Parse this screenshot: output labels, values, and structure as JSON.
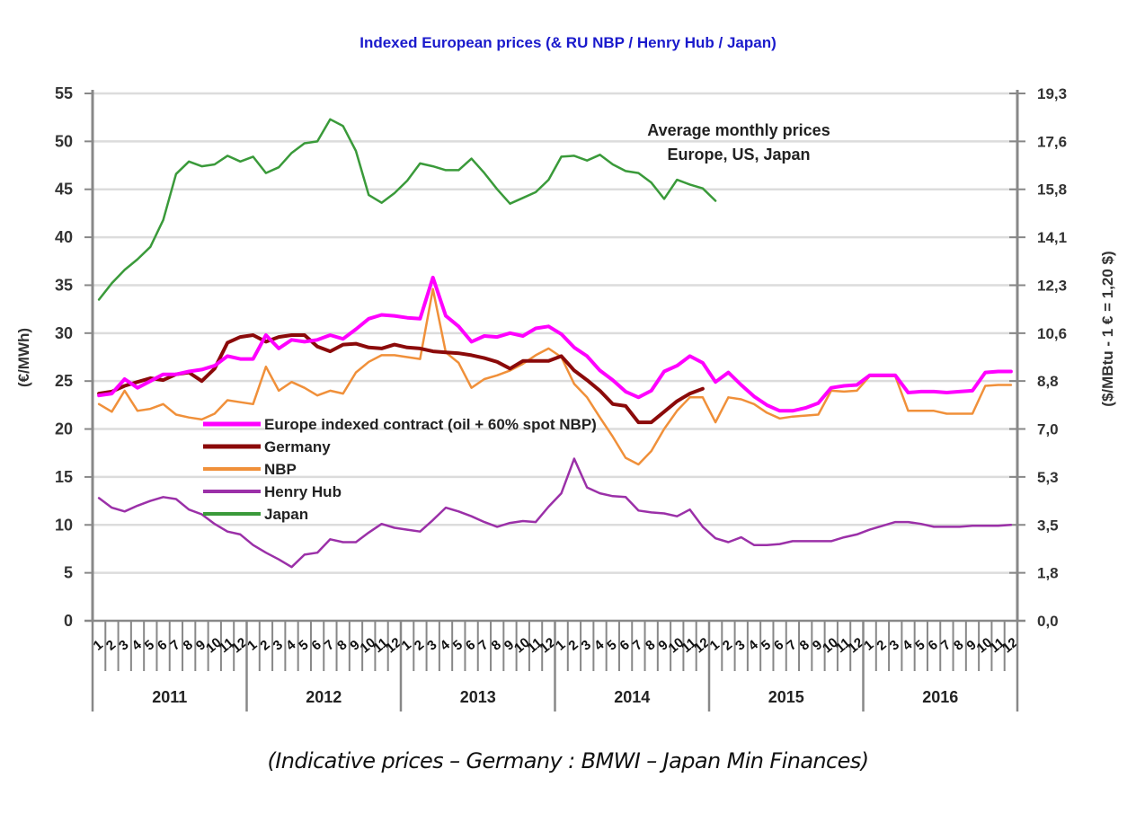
{
  "chart_data": {
    "type": "line",
    "title": "Indexed European prices (& RU NBP  / Henry Hub / Japan)",
    "caption": "(Indicative prices –  Germany : BMWI – Japan Min Finances)",
    "annotation": [
      "Average monthly prices",
      "Europe, US, Japan"
    ],
    "ylabel": "(€/MWh)",
    "ylabel_right": "($/MBtu - 1 € = 1,20 $)",
    "ylim": [
      0,
      55
    ],
    "yticks": [
      "0",
      "5",
      "10",
      "15",
      "20",
      "25",
      "30",
      "35",
      "40",
      "45",
      "50",
      "55"
    ],
    "yticks_right": [
      "0,0",
      "1,8",
      "3,5",
      "5,3",
      "7,0",
      "8,8",
      "10,6",
      "12,3",
      "14,1",
      "15,8",
      "17,6",
      "19,3"
    ],
    "grid": true,
    "legend_position": "lower-left-center",
    "years": [
      "2011",
      "2012",
      "2013",
      "2014",
      "2015",
      "2016"
    ],
    "month_labels": [
      "1",
      "2",
      "3",
      "4",
      "5",
      "6",
      "7",
      "8",
      "9",
      "10",
      "11",
      "12"
    ],
    "series": [
      {
        "name": "Europe indexed contract (oil + 60% spot NBP)",
        "color": "#ff00ff",
        "values": [
          23.5,
          23.7,
          25.2,
          24.3,
          25.0,
          25.7,
          25.7,
          26.0,
          26.2,
          26.6,
          27.6,
          27.3,
          27.3,
          29.8,
          28.4,
          29.3,
          29.1,
          29.3,
          29.8,
          29.4,
          30.4,
          31.5,
          31.9,
          31.8,
          31.6,
          31.5,
          35.8,
          31.8,
          30.7,
          29.1,
          29.7,
          29.6,
          30.0,
          29.7,
          30.5,
          30.7,
          29.9,
          28.5,
          27.6,
          26.1,
          25.1,
          23.9,
          23.3,
          24.0,
          26.0,
          26.6,
          27.6,
          26.9,
          24.9,
          25.9,
          24.6,
          23.4,
          22.5,
          21.9,
          21.9,
          22.2,
          22.7,
          24.3,
          24.5,
          24.6,
          25.6,
          25.6,
          25.6,
          23.8,
          23.9,
          23.9,
          23.8,
          23.9,
          24.0,
          25.9,
          26.0,
          26.0
        ]
      },
      {
        "name": "Germany",
        "color": "#8b0a0a",
        "values": [
          23.7,
          23.9,
          24.5,
          24.9,
          25.3,
          25.1,
          25.7,
          25.9,
          25.0,
          26.3,
          29.0,
          29.6,
          29.8,
          29.1,
          29.6,
          29.8,
          29.8,
          28.6,
          28.1,
          28.8,
          28.9,
          28.5,
          28.4,
          28.8,
          28.5,
          28.4,
          28.1,
          28.0,
          27.9,
          27.7,
          27.4,
          27.0,
          26.3,
          27.1,
          27.1,
          27.1,
          27.6,
          26.1,
          25.1,
          24.0,
          22.6,
          22.4,
          20.7,
          20.7,
          21.8,
          22.9,
          23.7,
          24.2,
          null,
          null,
          null,
          null,
          null,
          null,
          null,
          null,
          null,
          null,
          null,
          null,
          null,
          null,
          null,
          null,
          null,
          null,
          null,
          null,
          null,
          null,
          null,
          null
        ]
      },
      {
        "name": "NBP",
        "color": "#f0903a",
        "values": [
          22.6,
          21.8,
          24.0,
          21.9,
          22.1,
          22.6,
          21.5,
          21.2,
          21.0,
          21.6,
          23.0,
          22.8,
          22.6,
          26.5,
          24.0,
          24.9,
          24.3,
          23.5,
          24.0,
          23.7,
          25.9,
          27.0,
          27.7,
          27.7,
          27.5,
          27.3,
          34.6,
          28.0,
          26.9,
          24.3,
          25.2,
          25.6,
          26.1,
          26.8,
          27.7,
          28.4,
          27.5,
          24.7,
          23.3,
          21.2,
          19.2,
          17.0,
          16.3,
          17.7,
          20.0,
          21.9,
          23.3,
          23.3,
          20.7,
          23.3,
          23.1,
          22.6,
          21.7,
          21.1,
          21.3,
          21.4,
          21.5,
          24.0,
          23.9,
          24.0,
          25.5,
          25.5,
          25.5,
          21.9,
          21.9,
          21.9,
          21.6,
          21.6,
          21.6,
          24.5,
          24.6,
          24.6
        ]
      },
      {
        "name": "Henry Hub",
        "color": "#9b30a8",
        "values": [
          12.8,
          11.8,
          11.4,
          12.0,
          12.5,
          12.9,
          12.7,
          11.6,
          11.1,
          10.1,
          9.3,
          9.0,
          7.9,
          7.1,
          6.4,
          5.6,
          6.9,
          7.1,
          8.5,
          8.2,
          8.2,
          9.2,
          10.1,
          9.7,
          9.5,
          9.3,
          10.5,
          11.8,
          11.4,
          10.9,
          10.3,
          9.8,
          10.2,
          10.4,
          10.3,
          11.9,
          13.3,
          16.9,
          13.9,
          13.3,
          13.0,
          12.9,
          11.5,
          11.3,
          11.2,
          10.9,
          11.6,
          9.8,
          8.6,
          8.2,
          8.7,
          7.9,
          7.9,
          8.0,
          8.3,
          8.3,
          8.3,
          8.3,
          8.7,
          9.0,
          9.5,
          9.9,
          10.3,
          10.3,
          10.1,
          9.8,
          9.8,
          9.8,
          9.9,
          9.9,
          9.9,
          10.0
        ]
      },
      {
        "name": "Japan",
        "color": "#3a9a3a",
        "values": [
          33.5,
          35.2,
          36.6,
          37.7,
          39.0,
          41.8,
          46.6,
          47.9,
          47.4,
          47.6,
          48.5,
          47.9,
          48.4,
          46.7,
          47.3,
          48.8,
          49.8,
          50.0,
          52.3,
          51.6,
          49.0,
          44.4,
          43.6,
          44.6,
          45.9,
          47.7,
          47.4,
          47.0,
          47.0,
          48.2,
          46.7,
          45.0,
          43.5,
          44.1,
          44.7,
          46.0,
          48.4,
          48.5,
          48.0,
          48.6,
          47.6,
          46.9,
          46.7,
          45.7,
          44.0,
          46.0,
          45.5,
          45.1,
          43.8,
          null,
          null,
          null,
          null,
          null,
          null,
          null,
          null,
          null,
          null,
          null,
          null,
          null,
          null,
          null,
          null,
          null,
          null,
          null,
          null,
          null,
          null,
          null
        ]
      }
    ]
  }
}
